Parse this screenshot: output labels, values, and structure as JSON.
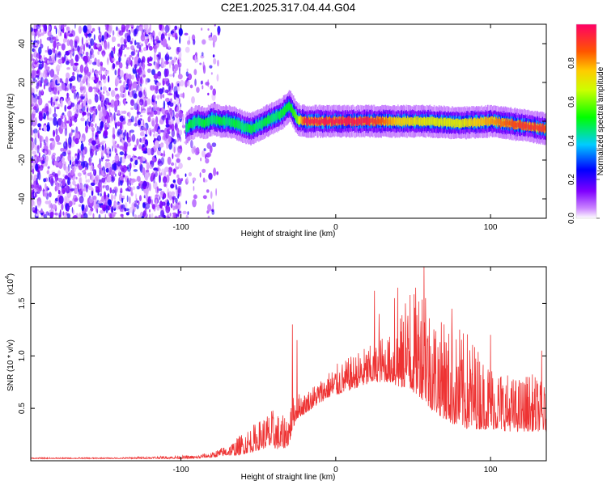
{
  "title": "C2E1.2025.317.04.44.G04",
  "chart_data": [
    {
      "type": "heatmap",
      "title": "C2E1.2025.317.04.44.G04",
      "xlabel": "Height of straight line (km)",
      "ylabel": "Frequency (Hz)",
      "xlim": [
        -197,
        136
      ],
      "ylim": [
        -50,
        50
      ],
      "xticks": [
        -100,
        0,
        100
      ],
      "xtick_labels": [
        "-100",
        "0",
        "100"
      ],
      "yticks": [
        -40,
        -20,
        0,
        20,
        40
      ],
      "ytick_labels": [
        "-40",
        "-20",
        "0",
        "20",
        "40"
      ],
      "colorbar": {
        "label": "Normalized spectral amplitude",
        "range": [
          0,
          1
        ],
        "ticks": [
          0.0,
          0.2,
          0.4,
          0.6,
          0.8
        ],
        "tick_labels": [
          "0.0",
          "0.2",
          "0.4",
          "0.6",
          "0.8"
        ],
        "colormap": [
          "#ffffff",
          "#7f00ff",
          "#0000ff",
          "#00ffff",
          "#00ff00",
          "#ffff00",
          "#ff8000",
          "#ff0066"
        ]
      },
      "noise_region_x": [
        -197,
        -75
      ],
      "signal_band": {
        "x": [
          -97,
          -95,
          -90,
          -85,
          -80,
          -75,
          -70,
          -65,
          -60,
          -55,
          -50,
          -45,
          -40,
          -35,
          -30,
          -25,
          -20,
          0,
          20,
          40,
          60,
          80,
          100,
          120,
          136
        ],
        "center_freq": [
          -4,
          -2,
          0,
          -1,
          1,
          0,
          0,
          -1,
          -3,
          -4,
          -2,
          0,
          2,
          4,
          8,
          1,
          0,
          0,
          0,
          0,
          0,
          -1,
          0,
          -2,
          -4
        ],
        "peak_amplitude": [
          0.45,
          0.5,
          0.45,
          0.5,
          0.45,
          0.5,
          0.45,
          0.5,
          0.45,
          0.5,
          0.45,
          0.5,
          0.45,
          0.5,
          0.5,
          0.6,
          0.95,
          0.95,
          0.95,
          0.75,
          0.7,
          0.7,
          0.8,
          0.9,
          0.9
        ]
      }
    },
    {
      "type": "line",
      "xlabel": "Height of straight line (km)",
      "ylabel": "SNR (10 * v/v)",
      "scale_label": "(x10",
      "scale_exponent": "4",
      "xlim": [
        -197,
        136
      ],
      "ylim": [
        0,
        1.85
      ],
      "xticks": [
        -100,
        0,
        100
      ],
      "xtick_labels": [
        "-100",
        "0",
        "100"
      ],
      "yticks": [
        0.5,
        1.0,
        1.5
      ],
      "ytick_labels": [
        "0.5",
        "1.0",
        "1.5"
      ],
      "color": "#ee3333",
      "series": [
        {
          "name": "SNR",
          "x": [
            -197,
            -180,
            -160,
            -140,
            -120,
            -100,
            -90,
            -85,
            -80,
            -75,
            -70,
            -65,
            -60,
            -55,
            -50,
            -45,
            -40,
            -35,
            -30,
            -28,
            -25,
            -20,
            -15,
            -10,
            -5,
            0,
            5,
            10,
            15,
            20,
            25,
            30,
            35,
            40,
            45,
            50,
            55,
            60,
            65,
            70,
            75,
            80,
            85,
            90,
            95,
            100,
            105,
            110,
            115,
            120,
            125,
            130,
            136
          ],
          "envelope": [
            0.03,
            0.03,
            0.03,
            0.03,
            0.04,
            0.05,
            0.05,
            0.07,
            0.08,
            0.12,
            0.15,
            0.2,
            0.28,
            0.33,
            0.38,
            0.45,
            0.5,
            0.42,
            0.5,
            0.6,
            0.65,
            0.65,
            0.72,
            0.78,
            0.85,
            0.92,
            0.95,
            1.0,
            1.05,
            1.1,
            1.1,
            1.2,
            1.2,
            1.35,
            1.45,
            1.6,
            1.8,
            1.55,
            1.4,
            1.3,
            1.25,
            1.2,
            1.25,
            1.15,
            1.0,
            0.95,
            0.9,
            0.85,
            0.8,
            0.8,
            0.85,
            0.8,
            0.7
          ],
          "baseline": [
            0.02,
            0.02,
            0.02,
            0.02,
            0.02,
            0.02,
            0.02,
            0.03,
            0.03,
            0.04,
            0.05,
            0.05,
            0.06,
            0.08,
            0.1,
            0.12,
            0.12,
            0.1,
            0.15,
            0.3,
            0.4,
            0.45,
            0.5,
            0.55,
            0.6,
            0.62,
            0.65,
            0.68,
            0.7,
            0.72,
            0.75,
            0.75,
            0.75,
            0.7,
            0.68,
            0.65,
            0.6,
            0.5,
            0.45,
            0.4,
            0.35,
            0.33,
            0.3,
            0.3,
            0.3,
            0.3,
            0.3,
            0.28,
            0.28,
            0.28,
            0.28,
            0.28,
            0.28
          ],
          "peaks": [
            [
              -28,
              1.3
            ],
            [
              -25,
              1.15
            ],
            [
              25,
              1.62
            ],
            [
              28,
              1.4
            ],
            [
              38,
              1.55
            ],
            [
              40,
              1.65
            ],
            [
              45,
              1.5
            ],
            [
              48,
              1.58
            ],
            [
              57,
              1.85
            ],
            [
              58,
              1.55
            ],
            [
              70,
              1.3
            ],
            [
              75,
              1.45
            ],
            [
              80,
              1.25
            ],
            [
              100,
              1.2
            ],
            [
              133,
              1.05
            ]
          ]
        }
      ]
    }
  ]
}
